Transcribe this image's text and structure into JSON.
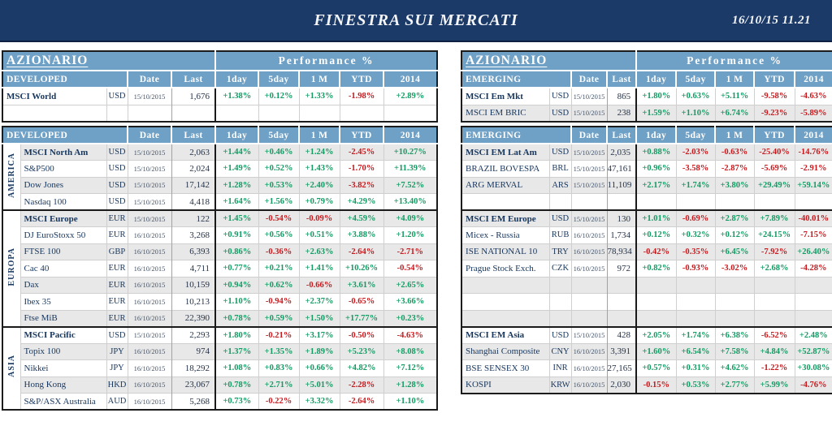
{
  "banner": {
    "title": "FINESTRA SUI MERCATI",
    "datetime": "16/10/15 11.21"
  },
  "section_title": "AZIONARIO",
  "performance_title": "Performance %",
  "column_headers": [
    "Date",
    "Last",
    "1day",
    "5day",
    "1 M",
    "YTD",
    "2014"
  ],
  "colors": {
    "banner_bg": "#1b3a67",
    "header_blue": "#6fa0c6",
    "positive": "#149a63",
    "negative": "#c61a1e",
    "stripe": "#e8e8e8",
    "navy_text": "#17365d"
  },
  "developed": {
    "subtitle": "DEVELOPED",
    "summary_rows": [
      {
        "name": "MSCI World",
        "ccy": "USD",
        "date": "15/10/2015",
        "last": "1,676",
        "perf": [
          "+1.38%",
          "+0.12%",
          "+1.33%",
          "-1.98%",
          "+2.89%"
        ],
        "bold": true,
        "shade": "white"
      },
      {
        "empty": true,
        "shade": "white"
      }
    ],
    "groups": [
      {
        "region": "AMERICA",
        "rows": [
          {
            "name": "MSCI North Am",
            "ccy": "USD",
            "date": "15/10/2015",
            "last": "2,063",
            "perf": [
              "+1.44%",
              "+0.46%",
              "+1.24%",
              "-2.45%",
              "+10.27%"
            ],
            "bold": true,
            "shade": "gray"
          },
          {
            "name": "S&P500",
            "ccy": "USD",
            "date": "15/10/2015",
            "last": "2,024",
            "perf": [
              "+1.49%",
              "+0.52%",
              "+1.43%",
              "-1.70%",
              "+11.39%"
            ],
            "shade": "white"
          },
          {
            "name": "Dow Jones",
            "ccy": "USD",
            "date": "15/10/2015",
            "last": "17,142",
            "perf": [
              "+1.28%",
              "+0.53%",
              "+2.40%",
              "-3.82%",
              "+7.52%"
            ],
            "shade": "gray"
          },
          {
            "name": "Nasdaq 100",
            "ccy": "USD",
            "date": "15/10/2015",
            "last": "4,418",
            "perf": [
              "+1.64%",
              "+1.56%",
              "+0.79%",
              "+4.29%",
              "+13.40%"
            ],
            "shade": "white"
          }
        ]
      },
      {
        "region": "EUROPA",
        "rows": [
          {
            "name": "MSCI Europe",
            "ccy": "EUR",
            "date": "15/10/2015",
            "last": "122",
            "perf": [
              "+1.45%",
              "-0.54%",
              "-0.09%",
              "+4.59%",
              "+4.09%"
            ],
            "bold": true,
            "shade": "gray"
          },
          {
            "name": "DJ EuroStoxx 50",
            "ccy": "EUR",
            "date": "16/10/2015",
            "last": "3,268",
            "perf": [
              "+0.91%",
              "+0.56%",
              "+0.51%",
              "+3.88%",
              "+1.20%"
            ],
            "shade": "white"
          },
          {
            "name": "FTSE 100",
            "ccy": "GBP",
            "date": "16/10/2015",
            "last": "6,393",
            "perf": [
              "+0.86%",
              "-0.36%",
              "+2.63%",
              "-2.64%",
              "-2.71%"
            ],
            "shade": "gray"
          },
          {
            "name": "Cac 40",
            "ccy": "EUR",
            "date": "16/10/2015",
            "last": "4,711",
            "perf": [
              "+0.77%",
              "+0.21%",
              "+1.41%",
              "+10.26%",
              "-0.54%"
            ],
            "shade": "white"
          },
          {
            "name": "Dax",
            "ccy": "EUR",
            "date": "16/10/2015",
            "last": "10,159",
            "perf": [
              "+0.94%",
              "+0.62%",
              "-0.66%",
              "+3.61%",
              "+2.65%"
            ],
            "shade": "gray"
          },
          {
            "name": "Ibex 35",
            "ccy": "EUR",
            "date": "16/10/2015",
            "last": "10,213",
            "perf": [
              "+1.10%",
              "-0.94%",
              "+2.37%",
              "-0.65%",
              "+3.66%"
            ],
            "shade": "white"
          },
          {
            "name": "Ftse MiB",
            "ccy": "EUR",
            "date": "16/10/2015",
            "last": "22,390",
            "perf": [
              "+0.78%",
              "+0.59%",
              "+1.50%",
              "+17.77%",
              "+0.23%"
            ],
            "shade": "gray"
          }
        ]
      },
      {
        "region": "ASIA",
        "rows": [
          {
            "name": "MSCI Pacific",
            "ccy": "USD",
            "date": "15/10/2015",
            "last": "2,293",
            "perf": [
              "+1.80%",
              "-0.21%",
              "+3.17%",
              "-0.50%",
              "-4.63%"
            ],
            "bold": true,
            "shade": "white"
          },
          {
            "name": "Topix 100",
            "ccy": "JPY",
            "date": "16/10/2015",
            "last": "974",
            "perf": [
              "+1.37%",
              "+1.35%",
              "+1.89%",
              "+5.23%",
              "+8.08%"
            ],
            "shade": "gray"
          },
          {
            "name": "Nikkei",
            "ccy": "JPY",
            "date": "16/10/2015",
            "last": "18,292",
            "perf": [
              "+1.08%",
              "+0.83%",
              "+0.66%",
              "+4.82%",
              "+7.12%"
            ],
            "shade": "white"
          },
          {
            "name": "Hong Kong",
            "ccy": "HKD",
            "date": "16/10/2015",
            "last": "23,067",
            "perf": [
              "+0.78%",
              "+2.71%",
              "+5.01%",
              "-2.28%",
              "+1.28%"
            ],
            "shade": "gray"
          },
          {
            "name": "S&P/ASX Australia",
            "ccy": "AUD",
            "date": "16/10/2015",
            "last": "5,268",
            "perf": [
              "+0.73%",
              "-0.22%",
              "+3.32%",
              "-2.64%",
              "+1.10%"
            ],
            "shade": "white"
          }
        ]
      }
    ]
  },
  "emerging": {
    "subtitle": "EMERGING",
    "summary_rows": [
      {
        "name": "MSCI Em Mkt",
        "ccy": "USD",
        "date": "15/10/2015",
        "last": "865",
        "perf": [
          "+1.80%",
          "+0.63%",
          "+5.11%",
          "-9.58%",
          "-4.63%"
        ],
        "bold": true,
        "shade": "white"
      },
      {
        "name": "MSCI EM BRIC",
        "ccy": "USD",
        "date": "15/10/2015",
        "last": "238",
        "perf": [
          "+1.59%",
          "+1.10%",
          "+6.74%",
          "-9.23%",
          "-5.89%"
        ],
        "shade": "gray"
      }
    ],
    "groups": [
      {
        "region": "",
        "rows": [
          {
            "name": "MSCI EM Lat Am",
            "ccy": "USD",
            "date": "15/10/2015",
            "last": "2,035",
            "perf": [
              "+0.88%",
              "-2.03%",
              "-0.63%",
              "-25.40%",
              "-14.76%"
            ],
            "bold": true,
            "shade": "gray"
          },
          {
            "name": "BRAZIL BOVESPA",
            "ccy": "BRL",
            "date": "15/10/2015",
            "last": "47,161",
            "perf": [
              "+0.96%",
              "-3.58%",
              "-2.87%",
              "-5.69%",
              "-2.91%"
            ],
            "shade": "white"
          },
          {
            "name": "ARG MERVAL",
            "ccy": "ARS",
            "date": "15/10/2015",
            "last": "11,109",
            "perf": [
              "+2.17%",
              "+1.74%",
              "+3.80%",
              "+29.49%",
              "+59.14%"
            ],
            "shade": "gray"
          },
          {
            "empty": true,
            "shade": "white"
          }
        ]
      },
      {
        "region": "",
        "rows": [
          {
            "name": "MSCI EM Europe",
            "ccy": "USD",
            "date": "15/10/2015",
            "last": "130",
            "perf": [
              "+1.01%",
              "-0.69%",
              "+2.87%",
              "+7.89%",
              "-40.01%"
            ],
            "bold": true,
            "shade": "gray"
          },
          {
            "name": "Micex - Russia",
            "ccy": "RUB",
            "date": "16/10/2015",
            "last": "1,734",
            "perf": [
              "+0.12%",
              "+0.32%",
              "+0.12%",
              "+24.15%",
              "-7.15%"
            ],
            "shade": "white"
          },
          {
            "name": "ISE NATIONAL 10",
            "ccy": "TRY",
            "date": "16/10/2015",
            "last": "78,934",
            "perf": [
              "-0.42%",
              "-0.35%",
              "+6.45%",
              "-7.92%",
              "+26.40%"
            ],
            "shade": "gray"
          },
          {
            "name": "Prague Stock Exch.",
            "ccy": "CZK",
            "date": "16/10/2015",
            "last": "972",
            "perf": [
              "+0.82%",
              "-0.93%",
              "-3.02%",
              "+2.68%",
              "-4.28%"
            ],
            "shade": "white"
          },
          {
            "empty": true,
            "shade": "gray"
          },
          {
            "empty": true,
            "shade": "white"
          },
          {
            "empty": true,
            "shade": "gray"
          }
        ]
      },
      {
        "region": "",
        "rows": [
          {
            "name": "MSCI EM Asia",
            "ccy": "USD",
            "date": "15/10/2015",
            "last": "428",
            "perf": [
              "+2.05%",
              "+1.74%",
              "+6.38%",
              "-6.52%",
              "+2.48%"
            ],
            "bold": true,
            "shade": "white"
          },
          {
            "name": "Shanghai Composite",
            "ccy": "CNY",
            "date": "16/10/2015",
            "last": "3,391",
            "perf": [
              "+1.60%",
              "+6.54%",
              "+7.58%",
              "+4.84%",
              "+52.87%"
            ],
            "shade": "gray"
          },
          {
            "name": "BSE SENSEX 30",
            "ccy": "INR",
            "date": "16/10/2015",
            "last": "27,165",
            "perf": [
              "+0.57%",
              "+0.31%",
              "+4.62%",
              "-1.22%",
              "+30.08%"
            ],
            "shade": "white"
          },
          {
            "name": "KOSPI",
            "ccy": "KRW",
            "date": "16/10/2015",
            "last": "2,030",
            "perf": [
              "-0.15%",
              "+0.53%",
              "+2.77%",
              "+5.99%",
              "-4.76%"
            ],
            "shade": "gray"
          }
        ]
      }
    ]
  }
}
